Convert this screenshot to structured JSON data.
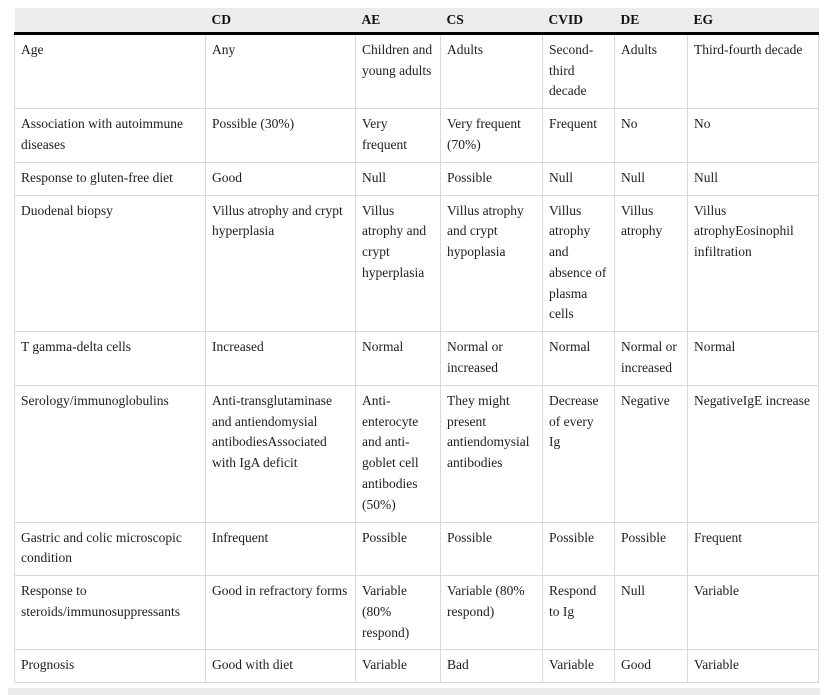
{
  "colors": {
    "header_bg": "#ececec",
    "header_rule": "#000000",
    "cell_border": "#d9d9d9",
    "text": "#1d1d1d",
    "bottom_strip": "#ebebeb"
  },
  "table": {
    "header": {
      "corner": "",
      "columns": [
        "CD",
        "AE",
        "CS",
        "CVID",
        "DE",
        "EG"
      ]
    },
    "rows": [
      {
        "label": "Age",
        "values": [
          "Any",
          "Children and young adults",
          "Adults",
          "Second-third decade",
          "Adults",
          "Third-fourth decade"
        ]
      },
      {
        "label": "Association with autoimmune diseases",
        "values": [
          "Possible (30%)",
          "Very frequent",
          "Very frequent (70%)",
          "Frequent",
          "No",
          "No"
        ]
      },
      {
        "label": "Response to gluten-free diet",
        "values": [
          "Good",
          "Null",
          "Possible",
          "Null",
          "Null",
          "Null"
        ]
      },
      {
        "label": "Duodenal biopsy",
        "values": [
          "Villus atrophy and crypt hyperplasia",
          "Villus atrophy and crypt hyperplasia",
          "Villus atrophy and crypt hypoplasia",
          "Villus atrophy and absence of plasma cells",
          "Villus atrophy",
          "Villus atrophyEosinophil infiltration"
        ]
      },
      {
        "label": "T gamma-delta cells",
        "values": [
          "Increased",
          "Normal",
          "Normal or increased",
          "Normal",
          "Normal or increased",
          "Normal"
        ]
      },
      {
        "label": "Serology/immunoglobulins",
        "values": [
          "Anti-transglutaminase and antiendomysial antibodiesAssociated with IgA deficit",
          "Anti-enterocyte and anti-goblet cell antibodies (50%)",
          "They might present antiendomysial antibodies",
          "Decrease of every Ig",
          "Negative",
          "NegativeIgE increase"
        ]
      },
      {
        "label": "Gastric and colic microscopic condition",
        "values": [
          "Infrequent",
          "Possible",
          "Possible",
          "Possible",
          "Possible",
          "Frequent"
        ]
      },
      {
        "label": "Response to steroids/immunosuppressants",
        "values": [
          "Good in refractory forms",
          "Variable (80% respond)",
          "Variable (80% respond)",
          "Respond to Ig",
          "Null",
          "Variable"
        ]
      },
      {
        "label": "Prognosis",
        "values": [
          "Good with diet",
          "Variable",
          "Bad",
          "Variable",
          "Good",
          "Variable"
        ]
      }
    ]
  }
}
